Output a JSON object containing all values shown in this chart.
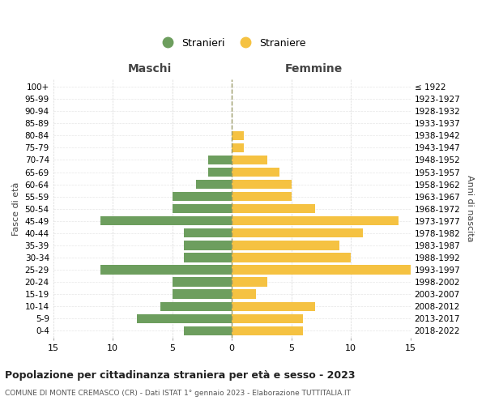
{
  "age_groups": [
    "0-4",
    "5-9",
    "10-14",
    "15-19",
    "20-24",
    "25-29",
    "30-34",
    "35-39",
    "40-44",
    "45-49",
    "50-54",
    "55-59",
    "60-64",
    "65-69",
    "70-74",
    "75-79",
    "80-84",
    "85-89",
    "90-94",
    "95-99",
    "100+"
  ],
  "birth_years": [
    "2018-2022",
    "2013-2017",
    "2008-2012",
    "2003-2007",
    "1998-2002",
    "1993-1997",
    "1988-1992",
    "1983-1987",
    "1978-1982",
    "1973-1977",
    "1968-1972",
    "1963-1967",
    "1958-1962",
    "1953-1957",
    "1948-1952",
    "1943-1947",
    "1938-1942",
    "1933-1937",
    "1928-1932",
    "1923-1927",
    "≤ 1922"
  ],
  "males": [
    4,
    8,
    6,
    5,
    5,
    11,
    4,
    4,
    4,
    11,
    5,
    5,
    3,
    2,
    2,
    0,
    0,
    0,
    0,
    0,
    0
  ],
  "females": [
    6,
    6,
    7,
    2,
    3,
    15,
    10,
    9,
    11,
    14,
    7,
    5,
    5,
    4,
    3,
    1,
    1,
    0,
    0,
    0,
    0
  ],
  "male_color": "#6d9e5e",
  "female_color": "#f5c242",
  "background_color": "#ffffff",
  "grid_color": "#cccccc",
  "center_line_color": "#999966",
  "title": "Popolazione per cittadinanza straniera per età e sesso - 2023",
  "subtitle": "COMUNE DI MONTE CREMASCO (CR) - Dati ISTAT 1° gennaio 2023 - Elaborazione TUTTITALIA.IT",
  "left_header": "Maschi",
  "right_header": "Femmine",
  "left_axis_label": "Fasce di età",
  "right_axis_label": "Anni di nascita",
  "legend_male": "Stranieri",
  "legend_female": "Straniere",
  "xlim": 15
}
